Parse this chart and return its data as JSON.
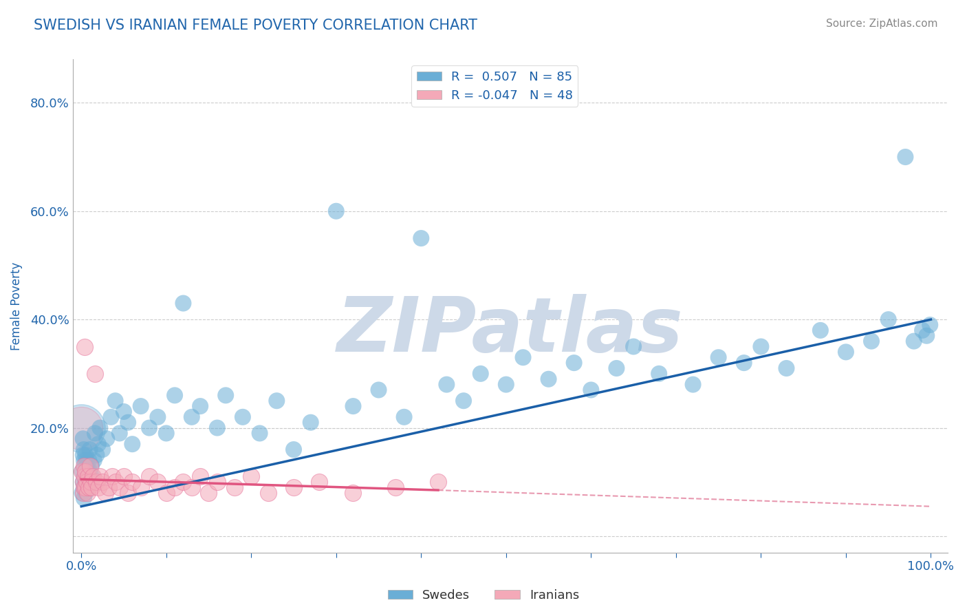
{
  "title": "SWEDISH VS IRANIAN FEMALE POVERTY CORRELATION CHART",
  "source_text": "Source: ZipAtlas.com",
  "ylabel": "Female Poverty",
  "swedes_color": "#6aaed6",
  "iranians_color": "#f4a9b8",
  "iranians_edge_color": "#e87aa0",
  "blue_line_color": "#1a5fa8",
  "pink_line_color": "#e05580",
  "dashed_line_color": "#e899b0",
  "background_color": "#ffffff",
  "watermark_text": "ZIPatlas",
  "watermark_color": "#cdd9e8",
  "title_color": "#2166ac",
  "source_color": "#888888",
  "axis_label_color": "#2166ac",
  "tick_label_color": "#2166ac",
  "R_swedes": 0.507,
  "N_swedes": 85,
  "R_iranians": -0.047,
  "N_iranians": 48,
  "swedes_x": [
    0.001,
    0.001,
    0.002,
    0.002,
    0.002,
    0.003,
    0.003,
    0.003,
    0.003,
    0.004,
    0.004,
    0.004,
    0.005,
    0.005,
    0.005,
    0.006,
    0.006,
    0.007,
    0.007,
    0.008,
    0.008,
    0.009,
    0.01,
    0.01,
    0.011,
    0.012,
    0.013,
    0.015,
    0.016,
    0.018,
    0.02,
    0.022,
    0.025,
    0.03,
    0.035,
    0.04,
    0.045,
    0.05,
    0.055,
    0.06,
    0.07,
    0.08,
    0.09,
    0.1,
    0.11,
    0.12,
    0.13,
    0.14,
    0.16,
    0.17,
    0.19,
    0.21,
    0.23,
    0.25,
    0.27,
    0.3,
    0.32,
    0.35,
    0.38,
    0.4,
    0.43,
    0.45,
    0.47,
    0.5,
    0.52,
    0.55,
    0.58,
    0.6,
    0.63,
    0.65,
    0.68,
    0.72,
    0.75,
    0.78,
    0.8,
    0.83,
    0.87,
    0.9,
    0.93,
    0.95,
    0.97,
    0.98,
    0.99,
    0.995,
    0.999
  ],
  "swedes_y": [
    0.12,
    0.08,
    0.15,
    0.1,
    0.18,
    0.09,
    0.14,
    0.07,
    0.16,
    0.11,
    0.13,
    0.09,
    0.1,
    0.15,
    0.08,
    0.12,
    0.14,
    0.1,
    0.13,
    0.11,
    0.09,
    0.14,
    0.12,
    0.16,
    0.1,
    0.13,
    0.11,
    0.14,
    0.19,
    0.15,
    0.17,
    0.2,
    0.16,
    0.18,
    0.22,
    0.25,
    0.19,
    0.23,
    0.21,
    0.17,
    0.24,
    0.2,
    0.22,
    0.19,
    0.26,
    0.43,
    0.22,
    0.24,
    0.2,
    0.26,
    0.22,
    0.19,
    0.25,
    0.16,
    0.21,
    0.6,
    0.24,
    0.27,
    0.22,
    0.55,
    0.28,
    0.25,
    0.3,
    0.28,
    0.33,
    0.29,
    0.32,
    0.27,
    0.31,
    0.35,
    0.3,
    0.28,
    0.33,
    0.32,
    0.35,
    0.31,
    0.38,
    0.34,
    0.36,
    0.4,
    0.7,
    0.36,
    0.38,
    0.37,
    0.39
  ],
  "iranians_x": [
    0.001,
    0.002,
    0.002,
    0.003,
    0.003,
    0.004,
    0.004,
    0.005,
    0.005,
    0.006,
    0.007,
    0.008,
    0.009,
    0.01,
    0.011,
    0.012,
    0.014,
    0.016,
    0.018,
    0.02,
    0.022,
    0.025,
    0.028,
    0.032,
    0.036,
    0.04,
    0.045,
    0.05,
    0.055,
    0.06,
    0.07,
    0.08,
    0.09,
    0.1,
    0.11,
    0.12,
    0.13,
    0.14,
    0.15,
    0.16,
    0.18,
    0.2,
    0.22,
    0.25,
    0.28,
    0.32,
    0.37,
    0.42
  ],
  "iranians_y": [
    0.12,
    0.1,
    0.08,
    0.13,
    0.09,
    0.35,
    0.11,
    0.09,
    0.12,
    0.1,
    0.08,
    0.11,
    0.09,
    0.13,
    0.1,
    0.09,
    0.11,
    0.3,
    0.1,
    0.09,
    0.11,
    0.1,
    0.08,
    0.09,
    0.11,
    0.1,
    0.09,
    0.11,
    0.08,
    0.1,
    0.09,
    0.11,
    0.1,
    0.08,
    0.09,
    0.1,
    0.09,
    0.11,
    0.08,
    0.1,
    0.09,
    0.11,
    0.08,
    0.09,
    0.1,
    0.08,
    0.09,
    0.1
  ],
  "blue_line_x0": 0.0,
  "blue_line_y0": 0.055,
  "blue_line_x1": 1.0,
  "blue_line_y1": 0.4,
  "pink_line_x0": 0.0,
  "pink_line_y0": 0.105,
  "pink_line_x1": 0.42,
  "pink_line_y1": 0.085,
  "dashed_line_x0": 0.42,
  "dashed_line_y0": 0.085,
  "dashed_line_x1": 1.0,
  "dashed_line_y1": 0.055,
  "ylim_min": -0.03,
  "ylim_max": 0.88,
  "xlim_min": -0.01,
  "xlim_max": 1.02
}
